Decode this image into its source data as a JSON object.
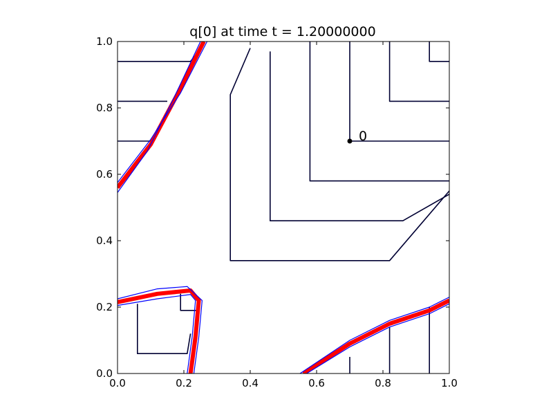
{
  "chart_data": {
    "type": "line",
    "title": "q[0] at time t =     1.20000000",
    "xlim": [
      0.0,
      1.0
    ],
    "ylim": [
      0.0,
      1.0
    ],
    "x_ticks": [
      "0.0",
      "0.2",
      "0.4",
      "0.6",
      "0.8",
      "1.0"
    ],
    "y_ticks": [
      "0.0",
      "0.2",
      "0.4",
      "0.6",
      "0.8",
      "1.0"
    ],
    "grid": false,
    "colors": {
      "contour": "#000033",
      "boundary": "#ff0000",
      "edge": "#0000ff"
    },
    "annotations": [
      {
        "text": "0",
        "x": 0.7,
        "y": 0.7
      }
    ],
    "contours": [
      {
        "color": "contour",
        "points": [
          [
            0.7,
            1.0
          ],
          [
            0.7,
            0.7
          ],
          [
            1.0,
            0.7
          ]
        ]
      },
      {
        "color": "contour",
        "points": [
          [
            0.82,
            1.0
          ],
          [
            0.82,
            0.82
          ],
          [
            1.0,
            0.82
          ]
        ]
      },
      {
        "color": "contour",
        "points": [
          [
            0.94,
            1.0
          ],
          [
            0.94,
            0.94
          ],
          [
            1.0,
            0.94
          ]
        ]
      },
      {
        "color": "contour",
        "points": [
          [
            0.58,
            1.0
          ],
          [
            0.58,
            0.58
          ],
          [
            1.0,
            0.58
          ]
        ]
      },
      {
        "color": "contour",
        "points": [
          [
            0.46,
            0.97
          ],
          [
            0.46,
            0.46
          ],
          [
            0.86,
            0.46
          ],
          [
            1.0,
            0.54
          ]
        ]
      },
      {
        "color": "contour",
        "points": [
          [
            0.4,
            0.98
          ],
          [
            0.34,
            0.84
          ],
          [
            0.34,
            0.34
          ],
          [
            0.82,
            0.34
          ],
          [
            1.0,
            0.55
          ]
        ]
      },
      {
        "color": "contour",
        "points": [
          [
            0.0,
            0.94
          ],
          [
            0.22,
            0.94
          ],
          [
            0.26,
            0.99
          ]
        ]
      },
      {
        "color": "contour",
        "points": [
          [
            0.0,
            0.82
          ],
          [
            0.15,
            0.82
          ]
        ]
      },
      {
        "color": "contour",
        "points": [
          [
            0.0,
            0.7
          ],
          [
            0.1,
            0.7
          ]
        ]
      },
      {
        "color": "contour",
        "points": [
          [
            0.06,
            0.21
          ],
          [
            0.06,
            0.06
          ],
          [
            0.21,
            0.06
          ],
          [
            0.22,
            0.12
          ]
        ]
      },
      {
        "color": "contour",
        "points": [
          [
            0.19,
            0.24
          ],
          [
            0.19,
            0.19
          ],
          [
            0.24,
            0.19
          ]
        ]
      },
      {
        "color": "contour",
        "points": [
          [
            0.7,
            0.05
          ],
          [
            0.7,
            0.0
          ]
        ]
      },
      {
        "color": "contour",
        "points": [
          [
            0.82,
            0.14
          ],
          [
            0.82,
            0.0
          ]
        ]
      },
      {
        "color": "contour",
        "points": [
          [
            0.94,
            0.2
          ],
          [
            0.94,
            0.0
          ]
        ]
      },
      {
        "color": "boundary",
        "points": [
          [
            0.0,
            0.56
          ],
          [
            0.1,
            0.69
          ],
          [
            0.18,
            0.84
          ],
          [
            0.26,
            1.0
          ]
        ]
      },
      {
        "color": "boundary",
        "points": [
          [
            0.0,
            0.215
          ],
          [
            0.12,
            0.24
          ],
          [
            0.22,
            0.25
          ],
          [
            0.245,
            0.22
          ],
          [
            0.235,
            0.11
          ],
          [
            0.22,
            0.0
          ]
        ]
      },
      {
        "color": "boundary",
        "points": [
          [
            0.56,
            0.0
          ],
          [
            0.7,
            0.09
          ],
          [
            0.82,
            0.15
          ],
          [
            0.94,
            0.19
          ],
          [
            1.0,
            0.22
          ]
        ]
      },
      {
        "color": "edge",
        "points": [
          [
            0.0,
            0.575
          ],
          [
            0.1,
            0.705
          ],
          [
            0.19,
            0.845
          ],
          [
            0.27,
            1.0
          ]
        ]
      },
      {
        "color": "edge",
        "points": [
          [
            0.0,
            0.545
          ],
          [
            0.09,
            0.67
          ],
          [
            0.17,
            0.83
          ],
          [
            0.25,
            1.0
          ]
        ]
      },
      {
        "color": "edge",
        "points": [
          [
            0.0,
            0.225
          ],
          [
            0.12,
            0.255
          ],
          [
            0.21,
            0.262
          ],
          [
            0.255,
            0.22
          ],
          [
            0.245,
            0.11
          ],
          [
            0.23,
            0.0
          ]
        ]
      },
      {
        "color": "edge",
        "points": [
          [
            0.0,
            0.205
          ],
          [
            0.12,
            0.225
          ],
          [
            0.22,
            0.238
          ],
          [
            0.235,
            0.22
          ],
          [
            0.225,
            0.11
          ],
          [
            0.21,
            0.0
          ]
        ]
      },
      {
        "color": "edge",
        "points": [
          [
            0.55,
            0.0
          ],
          [
            0.7,
            0.1
          ],
          [
            0.82,
            0.16
          ],
          [
            0.94,
            0.2
          ],
          [
            1.0,
            0.23
          ]
        ]
      },
      {
        "color": "edge",
        "points": [
          [
            0.57,
            0.0
          ],
          [
            0.7,
            0.08
          ],
          [
            0.82,
            0.14
          ],
          [
            0.94,
            0.18
          ],
          [
            1.0,
            0.21
          ]
        ]
      }
    ]
  }
}
